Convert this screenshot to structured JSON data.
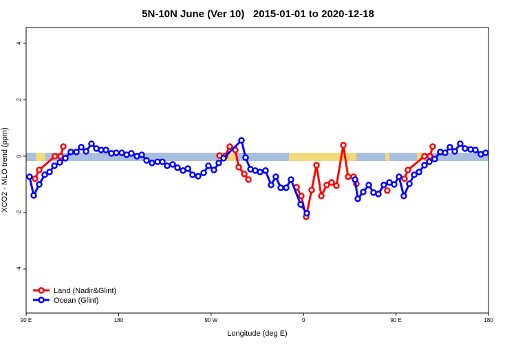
{
  "chart_data": {
    "type": "line",
    "title": "5N-10N June (Ver 10)   2015-01-01 to 2020-12-18",
    "x_label": "Longitude (deg E)",
    "y_label": "XCO2 - MLO trend (ppm)",
    "xlim": [
      90,
      540
    ],
    "ylim": [
      -5.56,
      4.56
    ],
    "xticks": [
      {
        "value": 90,
        "label": "90 E"
      },
      {
        "value": 180,
        "label": "180"
      },
      {
        "value": 270,
        "label": "90 W"
      },
      {
        "value": 360,
        "label": "0"
      },
      {
        "value": 450,
        "label": "90 E"
      },
      {
        "value": 540,
        "label": "180"
      }
    ],
    "yticks": [
      -4,
      -2,
      0,
      2,
      4
    ],
    "legend": "bottomleft",
    "series": [
      {
        "name": "Land (Nadir&Glint)",
        "color": "#ff0000",
        "x": [
          98.7,
          102.7,
          118.1,
          123.5,
          126.2,
          200,
          278.2,
          283.5,
          288.2,
          293.6,
          296.9,
          302.3,
          306.3,
          330,
          353.2,
          357.8,
          362.5,
          367.9,
          372.6,
          377.3,
          382.6,
          387.3,
          392,
          398.7,
          403.4,
          408.7,
          411.4,
          420,
          441.5,
          450,
          458.3,
          461.6,
          477.7,
          483,
          485.7
        ],
        "values": [
          -0.8,
          -0.49,
          0,
          0,
          0.34,
          null,
          0.02,
          0,
          0.34,
          0.22,
          -0.39,
          -0.63,
          -0.83,
          null,
          -1.1,
          -1.41,
          -2.15,
          -1.2,
          -0.32,
          -1.41,
          -1.02,
          -0.93,
          -1.05,
          0.39,
          -0.73,
          -0.73,
          -0.98,
          null,
          -1.22,
          null,
          -0.8,
          -0.49,
          0,
          0,
          0.34
        ]
      },
      {
        "name": "Ocean (Glint)",
        "color": "#0000ff",
        "x": [
          93.3,
          97.4,
          102.7,
          108.1,
          112.8,
          117.5,
          122.8,
          128.2,
          133.5,
          138.9,
          143.6,
          148.3,
          153.6,
          158.3,
          163,
          167.7,
          173,
          177.7,
          183.1,
          187.8,
          192.4,
          197.8,
          202.5,
          207.2,
          212.5,
          217.9,
          222.6,
          227.3,
          232.6,
          237.3,
          242.7,
          247.4,
          252,
          257.4,
          262.8,
          267.4,
          272.8,
          277.5,
          282.2,
          299.6,
          303.6,
          308.3,
          313,
          317.7,
          323,
          328.4,
          333,
          337.8,
          343.1,
          347.8,
          357.2,
          363.2,
          400,
          410.1,
          412.8,
          418.1,
          423.5,
          428.1,
          432.8,
          438.2,
          443.6,
          448.2,
          452.9,
          457.6,
          463,
          467.7,
          472.4,
          477.7,
          482.4,
          487.7,
          493.1,
          497.8,
          502.5,
          507.2,
          512.5,
          517.2,
          522.6,
          527.3,
          532.6,
          537.3
        ],
        "values": [
          -0.73,
          -1.39,
          -1.0,
          -0.66,
          -0.56,
          -0.34,
          -0.22,
          -0.07,
          0.15,
          0.15,
          0.32,
          0.17,
          0.44,
          0.27,
          0.22,
          0.22,
          0.1,
          0.12,
          0.12,
          0.05,
          0.1,
          0,
          0.05,
          -0.15,
          -0.24,
          -0.2,
          -0.2,
          -0.34,
          -0.29,
          -0.41,
          -0.51,
          -0.44,
          -0.66,
          -0.71,
          -0.59,
          -0.34,
          -0.49,
          -0.24,
          -0.07,
          0.56,
          -0.05,
          -0.46,
          -0.51,
          -0.56,
          -0.51,
          -1.02,
          -0.73,
          -1.12,
          -1.12,
          -0.83,
          -1.71,
          -2.02,
          null,
          -0.83,
          -1.51,
          -1.27,
          -1.02,
          -1.29,
          -1.34,
          -1.02,
          -0.93,
          -1.0,
          -0.73,
          -1.41,
          -0.98,
          -0.66,
          -0.56,
          -0.32,
          -0.2,
          -0.1,
          0.15,
          0.12,
          0.32,
          0.17,
          0.44,
          0.27,
          0.24,
          0.22,
          0.07,
          0.12
        ]
      }
    ]
  }
}
